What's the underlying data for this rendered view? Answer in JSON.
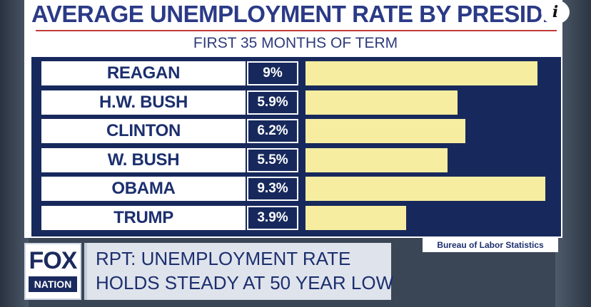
{
  "chart_data": {
    "type": "bar",
    "orientation": "horizontal",
    "title": "AVERAGE UNEMPLOYMENT RATE BY PRESIDENT",
    "subtitle": "FIRST 35 MONTHS OF TERM",
    "categories": [
      "REAGAN",
      "H.W. BUSH",
      "CLINTON",
      "W. BUSH",
      "OBAMA",
      "TRUMP"
    ],
    "values": [
      9,
      5.9,
      6.2,
      5.5,
      9.3,
      3.9
    ],
    "value_labels": [
      "9%",
      "5.9%",
      "6.2%",
      "5.5%",
      "9.3%",
      "3.9%"
    ],
    "unit": "%",
    "source": "Bureau of Labor Statistics",
    "colors": {
      "bar": "#f6eda0",
      "background": "#17295c",
      "label_text": "#1c2f6e"
    }
  },
  "branding": {
    "logo_top": "FOX",
    "logo_bottom": "NATION"
  },
  "ticker": {
    "line1": "RPT: UNEMPLOYMENT RATE",
    "line2": "HOLDS STEADY AT 50 YEAR LOW"
  },
  "info_glyph": "i"
}
